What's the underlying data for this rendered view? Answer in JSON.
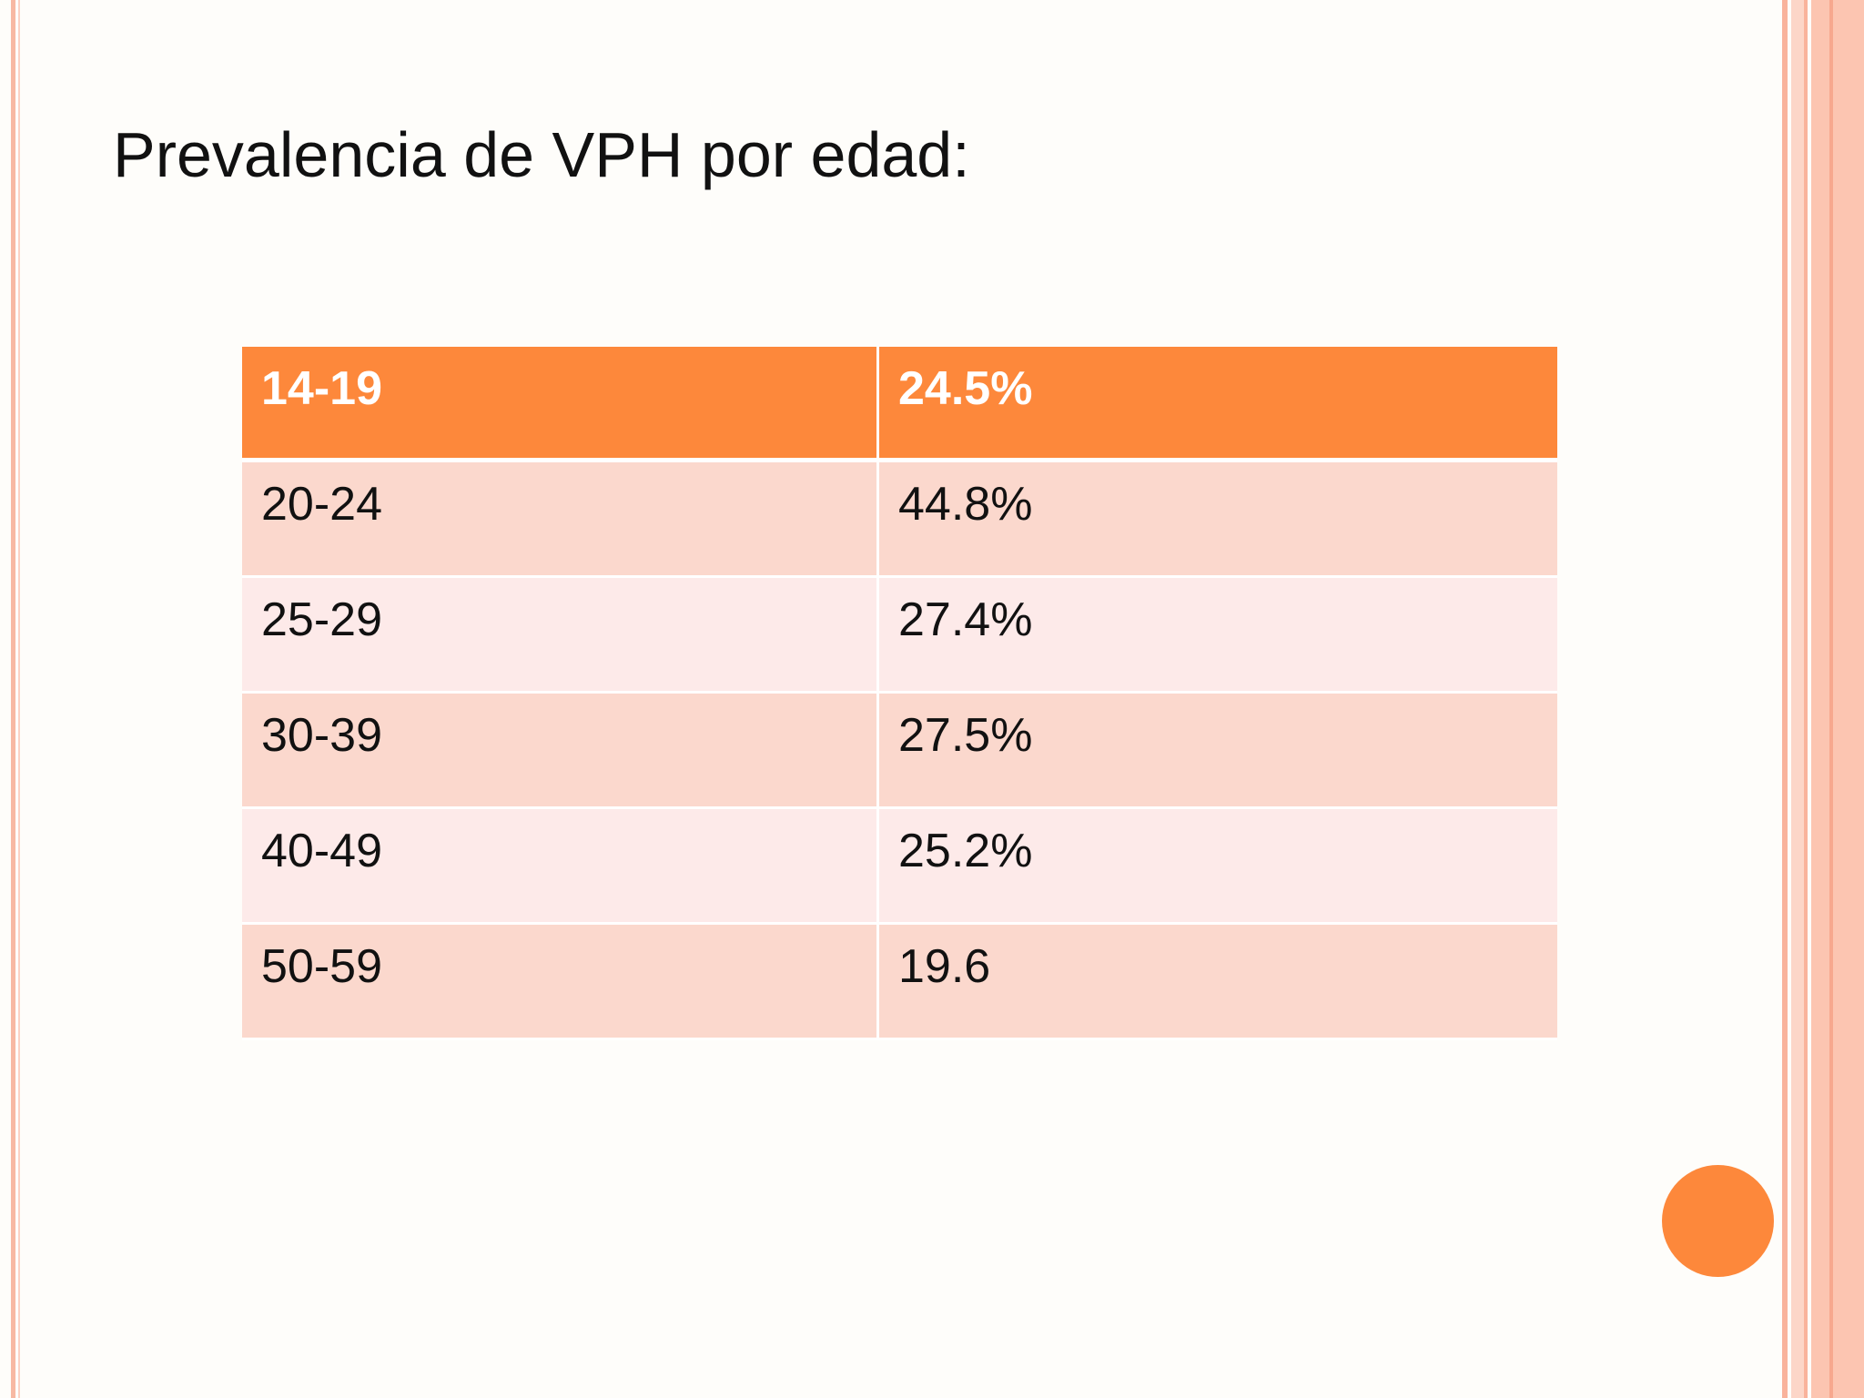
{
  "title": "Prevalencia de VPH por edad:",
  "table": {
    "rows": [
      [
        "14-19",
        "24.5%"
      ],
      [
        "20-24",
        "44.8%"
      ],
      [
        "25-29",
        "27.4%"
      ],
      [
        "30-39",
        "27.5%"
      ],
      [
        "40-49",
        "25.2%"
      ],
      [
        "50-59",
        "19.6"
      ]
    ]
  }
}
